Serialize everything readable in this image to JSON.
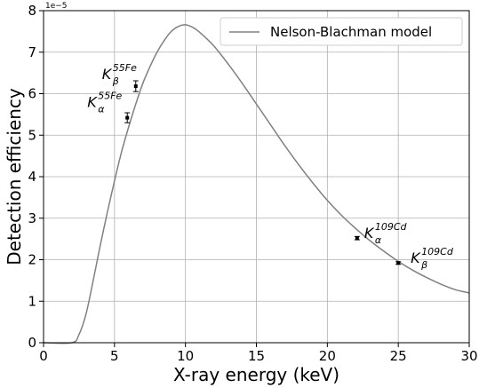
{
  "chart_data": {
    "type": "line",
    "xlabel": "X-ray energy (keV)",
    "ylabel": "Detection efficiency",
    "y_offset_label": "1e−5",
    "y_scale_factor": 1e-05,
    "xlim": [
      0,
      30
    ],
    "ylim": [
      0,
      8
    ],
    "x_ticks": [
      0,
      5,
      10,
      15,
      20,
      25,
      30
    ],
    "y_ticks": [
      0,
      1,
      2,
      3,
      4,
      5,
      6,
      7,
      8
    ],
    "grid": true,
    "legend_position": "top-right",
    "series": [
      {
        "name": "Nelson-Blachman model",
        "color": "#808080",
        "x": [
          0,
          2.0,
          2.5,
          3.0,
          3.5,
          4.0,
          4.5,
          5.0,
          5.5,
          6.0,
          6.5,
          7.0,
          7.5,
          8.0,
          8.5,
          9.0,
          9.5,
          10.0,
          10.5,
          11.0,
          12.0,
          13.0,
          14.0,
          15.0,
          16.0,
          17.0,
          18.0,
          19.0,
          20.0,
          21.0,
          22.0,
          23.0,
          24.0,
          25.0,
          26.0,
          27.0,
          28.0,
          29.0,
          30.0
        ],
        "y": [
          0,
          0.0,
          0.2,
          0.7,
          1.5,
          2.35,
          3.15,
          3.9,
          4.6,
          5.2,
          5.75,
          6.25,
          6.65,
          7.0,
          7.28,
          7.5,
          7.62,
          7.66,
          7.6,
          7.48,
          7.15,
          6.72,
          6.25,
          5.75,
          5.25,
          4.75,
          4.28,
          3.84,
          3.43,
          3.07,
          2.75,
          2.46,
          2.2,
          1.96,
          1.75,
          1.57,
          1.41,
          1.28,
          1.2
        ]
      }
    ],
    "points": [
      {
        "x": 5.9,
        "y": 5.42,
        "err": 0.12,
        "label_main": "K",
        "label_sub": "α",
        "label_sup": "55Fe"
      },
      {
        "x": 6.5,
        "y": 6.18,
        "err": 0.13,
        "label_main": "K",
        "label_sub": "β",
        "label_sup": "55Fe"
      },
      {
        "x": 22.1,
        "y": 2.52,
        "err": 0.04,
        "label_main": "K",
        "label_sub": "α",
        "label_sup": "109Cd"
      },
      {
        "x": 25.0,
        "y": 1.92,
        "err": 0.03,
        "label_main": "K",
        "label_sub": "β",
        "label_sup": "109Cd"
      }
    ]
  }
}
